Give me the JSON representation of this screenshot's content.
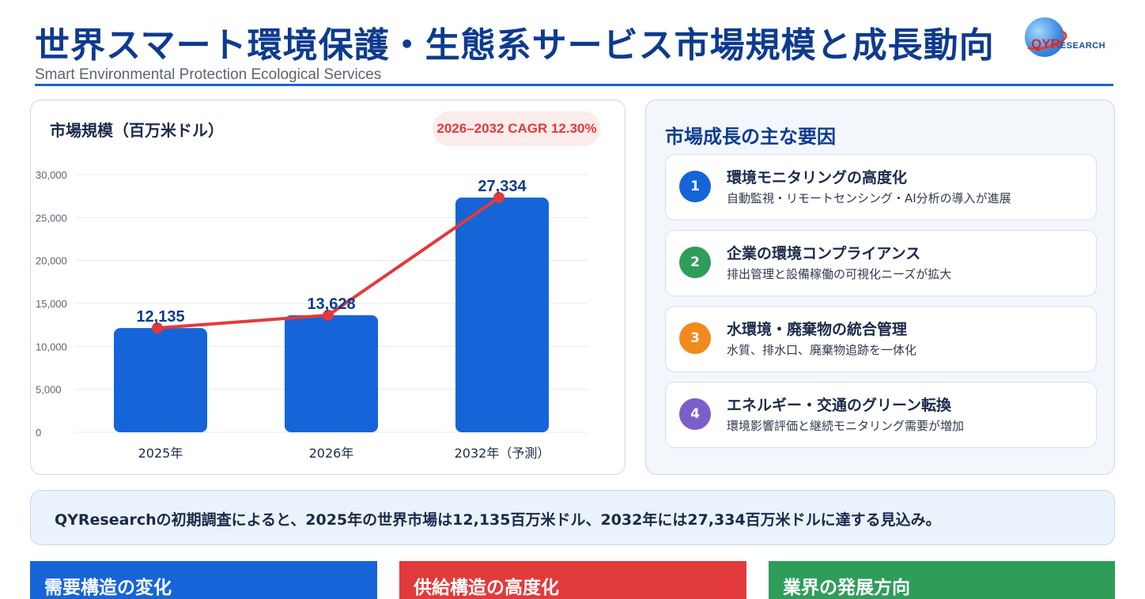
{
  "header": {
    "title": "世界スマート環境保護・生態系サービス市場規模と成長動向",
    "subtitle": "Smart Environmental Protection Ecological Services"
  },
  "logo": {
    "text_qy": "QY",
    "text_r": "R",
    "text_rest": "ESEARCH"
  },
  "chart_panel": {
    "title": "市場規模（百万米ドル）",
    "cagr_label": "2026–2032 CAGR 12.30%"
  },
  "chart_data": {
    "type": "bar",
    "categories": [
      "2025年",
      "2026年",
      "2032年（予測）"
    ],
    "values": [
      12135,
      13628,
      27334
    ],
    "value_labels": [
      "12,135",
      "13,628",
      "27,334"
    ],
    "overlay": "line",
    "ylim": [
      0,
      30000
    ],
    "yticks": [
      0,
      5000,
      10000,
      15000,
      20000,
      25000,
      30000
    ],
    "ytick_labels": [
      "0",
      "5,000",
      "10,000",
      "15,000",
      "20,000",
      "25,000",
      "30,000"
    ],
    "grid": true,
    "colors": {
      "bar": "#1565d8",
      "line": "#e23a3a",
      "value_label": "#0d3b8e"
    }
  },
  "drivers": {
    "title": "市場成長の主な要因",
    "items": [
      {
        "num": "1",
        "title": "環境モニタリングの高度化",
        "desc": "自動監視・リモートセンシング・AI分析の導入が進展",
        "color": "#1565d8"
      },
      {
        "num": "2",
        "title": "企業の環境コンプライアンス",
        "desc": "排出管理と設備稼働の可視化ニーズが拡大",
        "color": "#2e9d5a"
      },
      {
        "num": "3",
        "title": "水環境・廃棄物の統合管理",
        "desc": "水質、排水口、廃棄物追跡を一体化",
        "color": "#f08a1c"
      },
      {
        "num": "4",
        "title": "エネルギー・交通のグリーン転換",
        "desc": "環境影響評価と継続モニタリング需要が増加",
        "color": "#7b5fc9"
      }
    ]
  },
  "summary": {
    "text": "QYResearchの初期調査によると、2025年の世界市場は12,135百万米ドル、2032年には27,334百万米ドルに達する見込み。"
  },
  "sections": [
    {
      "label": "需要構造の変化",
      "color": "#1565d8"
    },
    {
      "label": "供給構造の高度化",
      "color": "#e23a3a"
    },
    {
      "label": "業界の発展方向",
      "color": "#2e9d5a"
    }
  ]
}
